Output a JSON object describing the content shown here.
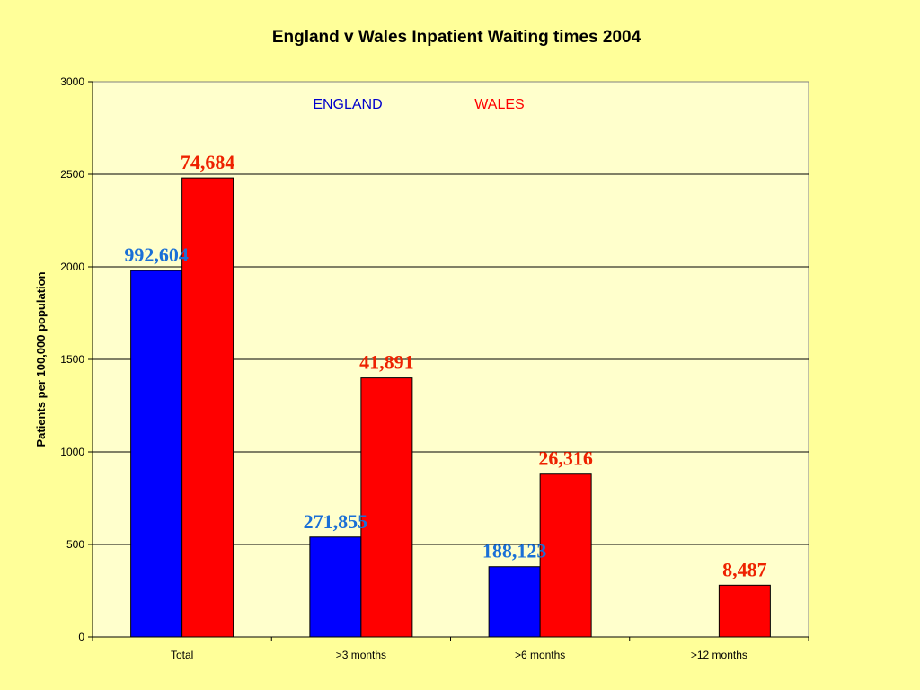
{
  "chart_data": {
    "type": "bar",
    "title": "England v Wales Inpatient Waiting times 2004",
    "xlabel": "",
    "ylabel": "Patients per 100,000 population",
    "ylim": [
      0,
      3000
    ],
    "yticks": [
      0,
      500,
      1000,
      1500,
      2000,
      2500,
      3000
    ],
    "grid": true,
    "categories": [
      "Total",
      ">3 months",
      ">6 months",
      ">12 months"
    ],
    "series": [
      {
        "name": "ENGLAND",
        "color": "#0000ff",
        "label_color": "#1a6fd6",
        "values": [
          1980,
          540,
          380,
          null
        ],
        "labels": [
          "992,604",
          "271,855",
          "188,123",
          ""
        ]
      },
      {
        "name": "WALES",
        "color": "#ff0000",
        "label_color": "#ee2200",
        "values": [
          2480,
          1400,
          880,
          280
        ],
        "labels": [
          "74,684",
          "41,891",
          "26,316",
          "8,487"
        ]
      }
    ],
    "legend": "top-center",
    "plot_background": "#ffffcc",
    "page_background": "#ffff99"
  }
}
